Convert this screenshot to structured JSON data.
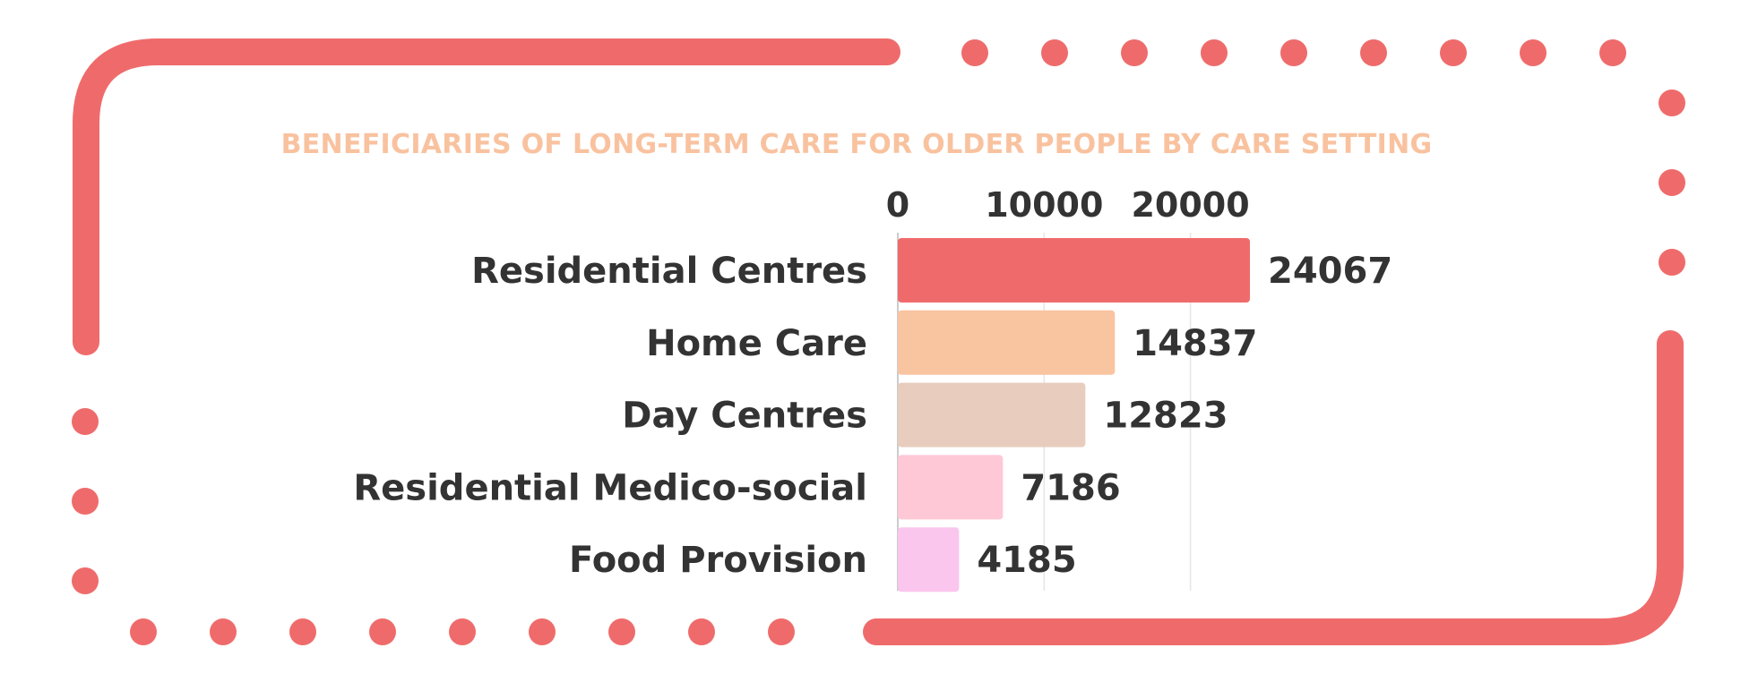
{
  "chart_data": {
    "type": "bar",
    "orientation": "horizontal",
    "title": "BENEFICIARIES OF LONG-TERM CARE FOR OLDER PEOPLE BY CARE SETTING",
    "categories": [
      "Residential Centres",
      "Home Care",
      "Day Centres",
      "Residential Medico-social",
      "Food Provision"
    ],
    "values": [
      24067,
      14837,
      12823,
      7186,
      4185
    ],
    "value_labels": [
      "24067",
      "14837",
      "12823",
      "7186",
      "4185"
    ],
    "colors": [
      "#ef6b6b",
      "#f9c4a0",
      "#e8cdbf",
      "#ffc8d6",
      "#fac6ee"
    ],
    "xticks": [
      0,
      10000,
      20000
    ],
    "xtick_labels": [
      "0",
      "10000",
      "20000"
    ],
    "xlim": [
      0,
      24067
    ],
    "xaxis_position": "top",
    "grid": true,
    "legend": "none",
    "title_color": "#f9c29f",
    "frame_color": "#ef6b6b"
  }
}
